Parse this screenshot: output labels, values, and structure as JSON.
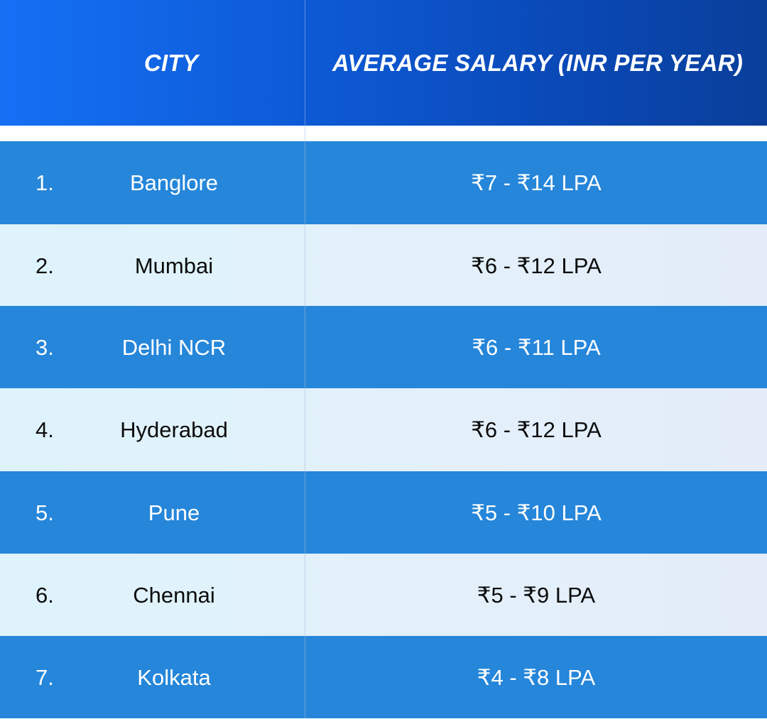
{
  "header": {
    "city": "CITY",
    "salary": "AVERAGE SALARY (INR PER YEAR)"
  },
  "colors": {
    "header_start": "#1570f5",
    "header_end": "#0a3f9a",
    "row_dark": "#2586da",
    "row_light": "#e0f1fa"
  },
  "rows": [
    {
      "num": "1.",
      "city": "Banglore",
      "salary": "₹7 - ₹14 LPA",
      "style": "dark"
    },
    {
      "num": "2.",
      "city": "Mumbai",
      "salary": "₹6 - ₹12 LPA",
      "style": "light"
    },
    {
      "num": "3.",
      "city": "Delhi NCR",
      "salary": "₹6 - ₹11 LPA",
      "style": "dark"
    },
    {
      "num": "4.",
      "city": "Hyderabad",
      "salary": "₹6 - ₹12 LPA",
      "style": "light"
    },
    {
      "num": "5.",
      "city": "Pune",
      "salary": "₹5 - ₹10 LPA",
      "style": "dark"
    },
    {
      "num": "6.",
      "city": "Chennai",
      "salary": "₹5 - ₹9 LPA",
      "style": "light"
    },
    {
      "num": "7.",
      "city": "Kolkata",
      "salary": "₹4 - ₹8 LPA",
      "style": "dark"
    }
  ]
}
